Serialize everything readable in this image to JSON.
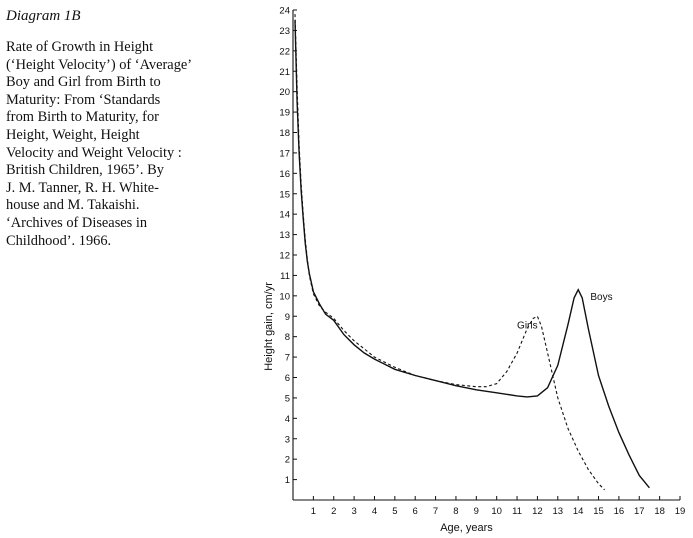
{
  "caption": {
    "tag": "Diagram 1B",
    "lines": [
      "Rate of Growth in Height",
      "(‘Height Velocity’) of ‘Average’",
      "Boy and Girl from Birth to",
      "Maturity: From ‘Standards",
      "from Birth to Maturity, for",
      "Height, Weight, Height",
      "Velocity and Weight Velocity :",
      "British Children, 1965’. By",
      "J. M. Tanner, R. H. White-",
      "house and M. Takaishi.",
      "‘Archives of Diseases in",
      "Childhood’. 1966."
    ]
  },
  "chart_data": {
    "type": "line",
    "title": "",
    "xlabel": "Age, years",
    "ylabel": "Height gain, cm/yr",
    "xlim": [
      0,
      19
    ],
    "ylim": [
      0,
      24
    ],
    "xticks": [
      1,
      2,
      3,
      4,
      5,
      6,
      7,
      8,
      9,
      10,
      11,
      12,
      13,
      14,
      15,
      16,
      17,
      18,
      19
    ],
    "yticks": [
      1,
      2,
      3,
      4,
      5,
      6,
      7,
      8,
      9,
      10,
      11,
      12,
      13,
      14,
      15,
      16,
      17,
      18,
      19,
      20,
      21,
      22,
      23,
      24
    ],
    "grid": false,
    "series": [
      {
        "name": "Boys",
        "style": "solid",
        "points": [
          [
            0.1,
            23.5
          ],
          [
            0.2,
            19.5
          ],
          [
            0.3,
            17
          ],
          [
            0.4,
            15.2
          ],
          [
            0.5,
            13.8
          ],
          [
            0.6,
            12.6
          ],
          [
            0.7,
            11.7
          ],
          [
            0.8,
            11.1
          ],
          [
            1,
            10.2
          ],
          [
            1.3,
            9.6
          ],
          [
            1.6,
            9.1
          ],
          [
            2,
            8.8
          ],
          [
            2.5,
            8.1
          ],
          [
            3,
            7.6
          ],
          [
            3.5,
            7.2
          ],
          [
            4,
            6.9
          ],
          [
            5,
            6.4
          ],
          [
            6,
            6.1
          ],
          [
            7,
            5.85
          ],
          [
            8,
            5.6
          ],
          [
            9,
            5.4
          ],
          [
            10,
            5.25
          ],
          [
            11,
            5.1
          ],
          [
            11.5,
            5.05
          ],
          [
            12,
            5.1
          ],
          [
            12.5,
            5.5
          ],
          [
            13,
            6.6
          ],
          [
            13.5,
            8.6
          ],
          [
            13.8,
            9.9
          ],
          [
            14,
            10.3
          ],
          [
            14.2,
            9.9
          ],
          [
            14.5,
            8.4
          ],
          [
            15,
            6.1
          ],
          [
            15.5,
            4.6
          ],
          [
            16,
            3.3
          ],
          [
            16.5,
            2.2
          ],
          [
            17,
            1.2
          ],
          [
            17.5,
            0.6
          ]
        ]
      },
      {
        "name": "Girls",
        "style": "dashed",
        "points": [
          [
            0.1,
            23.8
          ],
          [
            0.2,
            20.2
          ],
          [
            0.3,
            17.4
          ],
          [
            0.4,
            15.5
          ],
          [
            0.5,
            14
          ],
          [
            0.6,
            12.8
          ],
          [
            0.7,
            11.8
          ],
          [
            0.8,
            11
          ],
          [
            1,
            10.1
          ],
          [
            1.3,
            9.5
          ],
          [
            1.6,
            9.2
          ],
          [
            2,
            8.9
          ],
          [
            2.5,
            8.3
          ],
          [
            3,
            7.8
          ],
          [
            3.5,
            7.4
          ],
          [
            4,
            7
          ],
          [
            5,
            6.5
          ],
          [
            6,
            6.1
          ],
          [
            7,
            5.85
          ],
          [
            8,
            5.65
          ],
          [
            9,
            5.55
          ],
          [
            9.5,
            5.55
          ],
          [
            10,
            5.7
          ],
          [
            10.5,
            6.3
          ],
          [
            11,
            7.2
          ],
          [
            11.5,
            8.4
          ],
          [
            11.8,
            8.9
          ],
          [
            12,
            9
          ],
          [
            12.2,
            8.5
          ],
          [
            12.5,
            7.2
          ],
          [
            13,
            5
          ],
          [
            13.5,
            3.5
          ],
          [
            14,
            2.4
          ],
          [
            14.5,
            1.5
          ],
          [
            15,
            0.8
          ],
          [
            15.3,
            0.5
          ]
        ]
      }
    ],
    "annotations": [
      {
        "text": "Girls",
        "x": 11.0,
        "y": 8.4
      },
      {
        "text": "Boys",
        "x": 14.6,
        "y": 9.8
      }
    ]
  }
}
